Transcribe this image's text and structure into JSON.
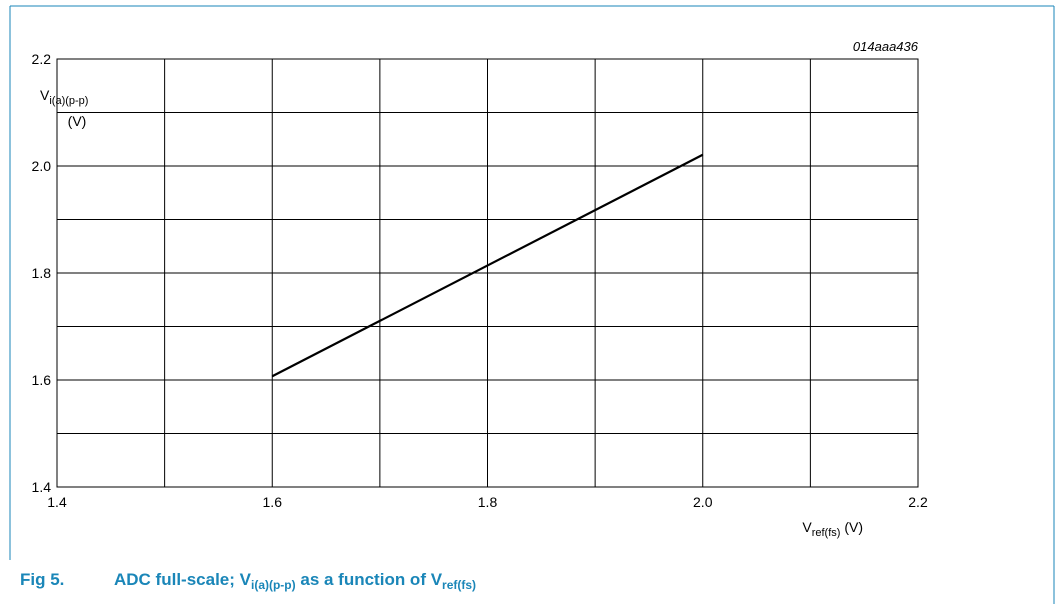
{
  "figure": {
    "fig_label": "Fig 5.",
    "caption_parts": [
      "ADC full-scale; V",
      "i(a)(p-p)",
      " as a function of V",
      "ref(fs)"
    ],
    "code": "014aaa436",
    "frame_color": "#1a86b8"
  },
  "chart_data": {
    "type": "line",
    "title": "",
    "xlabel_main": "V",
    "xlabel_sub": "ref(fs)",
    "xlabel_unit": "(V)",
    "ylabel_main": "V",
    "ylabel_sub": "i(a)(p-p)",
    "ylabel_unit": "(V)",
    "xlim": [
      1.4,
      2.2
    ],
    "ylim": [
      1.4,
      2.2
    ],
    "x_ticks": [
      1.4,
      1.5,
      1.6,
      1.7,
      1.8,
      1.9,
      2.0,
      2.1,
      2.2
    ],
    "y_ticks": [
      1.4,
      1.5,
      1.6,
      1.7,
      1.8,
      1.9,
      2.0,
      2.1,
      2.2
    ],
    "x_tick_labels": [
      {
        "value": 1.4,
        "label": "1.4"
      },
      {
        "value": 1.6,
        "label": "1.6"
      },
      {
        "value": 1.8,
        "label": "1.8"
      },
      {
        "value": 2.0,
        "label": "2.0"
      },
      {
        "value": 2.2,
        "label": "2.2"
      }
    ],
    "y_tick_labels": [
      {
        "value": 1.4,
        "label": "1.4"
      },
      {
        "value": 1.6,
        "label": "1.6"
      },
      {
        "value": 1.8,
        "label": "1.8"
      },
      {
        "value": 2.0,
        "label": "2.0"
      },
      {
        "value": 2.2,
        "label": "2.2"
      }
    ],
    "grid": true,
    "series": [
      {
        "x": [
          1.6,
          2.0
        ],
        "y": [
          1.607,
          2.021
        ],
        "color": "#000000"
      }
    ]
  }
}
